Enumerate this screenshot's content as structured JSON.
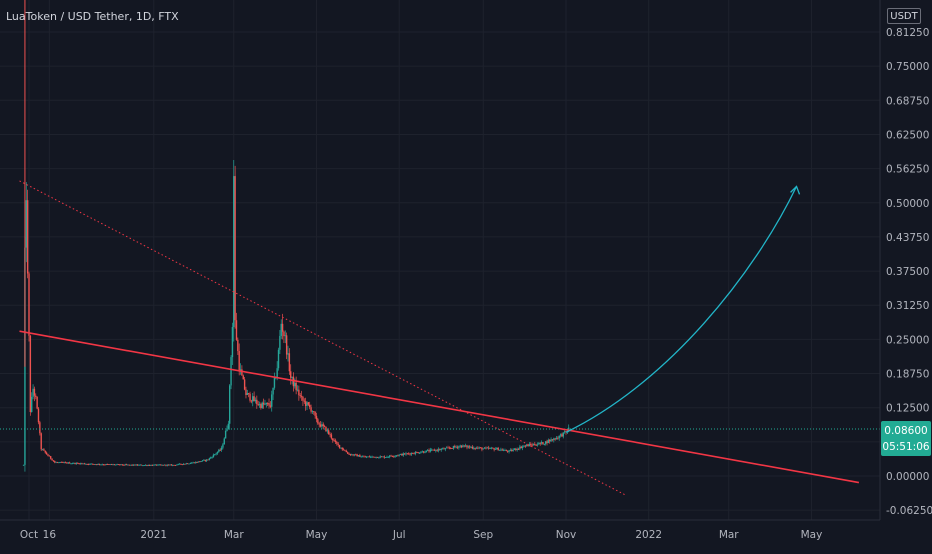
{
  "chart_data": {
    "type": "candlestick",
    "title": "LuaToken / USD Tether, 1D, FTX",
    "currency": "USDT",
    "last_price": "0.08600",
    "countdown": "05:51:06",
    "y_ticks": [
      "0.81250",
      "0.75000",
      "0.68750",
      "0.62500",
      "0.56250",
      "0.50000",
      "0.43750",
      "0.37500",
      "0.31250",
      "0.25000",
      "0.18750",
      "0.12500",
      "0.06250",
      "0.00000",
      "-0.06250"
    ],
    "y_tick_values": [
      0.8125,
      0.75,
      0.6875,
      0.625,
      0.5625,
      0.5,
      0.4375,
      0.375,
      0.3125,
      0.25,
      0.1875,
      0.125,
      0.0625,
      0,
      -0.0625
    ],
    "ylim": [
      -0.075,
      0.82
    ],
    "x_ticks": [
      "Oct",
      "16",
      "2021",
      "Mar",
      "May",
      "Jul",
      "Sep",
      "Nov",
      "2022",
      "Mar",
      "May"
    ],
    "x_tick_dates": [
      "2020-10-01",
      "2020-10-16",
      "2021-01-01",
      "2021-03-01",
      "2021-05-01",
      "2021-07-01",
      "2021-09-01",
      "2021-11-01",
      "2022-01-01",
      "2022-03-01",
      "2022-05-01"
    ],
    "price_path": [
      [
        "2020-09-27",
        0.02
      ],
      [
        "2020-09-28",
        0.4
      ],
      [
        "2020-09-29",
        0.52
      ],
      [
        "2020-09-30",
        0.36
      ],
      [
        "2020-10-01",
        0.25
      ],
      [
        "2020-10-02",
        0.12
      ],
      [
        "2020-10-04",
        0.16
      ],
      [
        "2020-10-06",
        0.14
      ],
      [
        "2020-10-08",
        0.1
      ],
      [
        "2020-10-10",
        0.05
      ],
      [
        "2020-10-14",
        0.04
      ],
      [
        "2020-10-20",
        0.025
      ],
      [
        "2020-11-15",
        0.022
      ],
      [
        "2020-12-15",
        0.02
      ],
      [
        "2021-01-15",
        0.02
      ],
      [
        "2021-02-01",
        0.025
      ],
      [
        "2021-02-10",
        0.03
      ],
      [
        "2021-02-20",
        0.05
      ],
      [
        "2021-02-25",
        0.1
      ],
      [
        "2021-02-28",
        0.28
      ],
      [
        "2021-03-01",
        0.55
      ],
      [
        "2021-03-02",
        0.28
      ],
      [
        "2021-03-05",
        0.2
      ],
      [
        "2021-03-10",
        0.15
      ],
      [
        "2021-03-20",
        0.13
      ],
      [
        "2021-03-28",
        0.13
      ],
      [
        "2021-04-02",
        0.2
      ],
      [
        "2021-04-05",
        0.28
      ],
      [
        "2021-04-08",
        0.25
      ],
      [
        "2021-04-12",
        0.18
      ],
      [
        "2021-04-20",
        0.14
      ],
      [
        "2021-04-28",
        0.12
      ],
      [
        "2021-05-01",
        0.1
      ],
      [
        "2021-05-08",
        0.085
      ],
      [
        "2021-05-15",
        0.06
      ],
      [
        "2021-05-25",
        0.04
      ],
      [
        "2021-06-05",
        0.035
      ],
      [
        "2021-06-20",
        0.035
      ],
      [
        "2021-07-05",
        0.04
      ],
      [
        "2021-07-20",
        0.045
      ],
      [
        "2021-08-05",
        0.05
      ],
      [
        "2021-08-15",
        0.055
      ],
      [
        "2021-09-01",
        0.05
      ],
      [
        "2021-09-10",
        0.05
      ],
      [
        "2021-09-20",
        0.045
      ],
      [
        "2021-10-01",
        0.055
      ],
      [
        "2021-10-15",
        0.06
      ],
      [
        "2021-10-25",
        0.07
      ],
      [
        "2021-11-01",
        0.08
      ],
      [
        "2021-11-03",
        0.086
      ]
    ],
    "annotations": {
      "descending_trendline": [
        [
          "2020-09-24",
          0.265
        ],
        [
          "2022-06-05",
          -0.012
        ]
      ],
      "dotted_trendline": [
        [
          "2020-09-24",
          0.54
        ],
        [
          "2021-12-15",
          -0.035
        ]
      ],
      "projection_arrow": [
        [
          "2021-11-01",
          0.08
        ],
        [
          "2022-01-15",
          0.17
        ],
        [
          "2022-03-20",
          0.37
        ],
        [
          "2022-04-20",
          0.53
        ]
      ]
    },
    "colors": {
      "up": "#26a69a",
      "down": "#ef5350",
      "trendline": "#f23645",
      "arrow": "#22b5c8",
      "last_price_badge": "#22ab94"
    }
  }
}
